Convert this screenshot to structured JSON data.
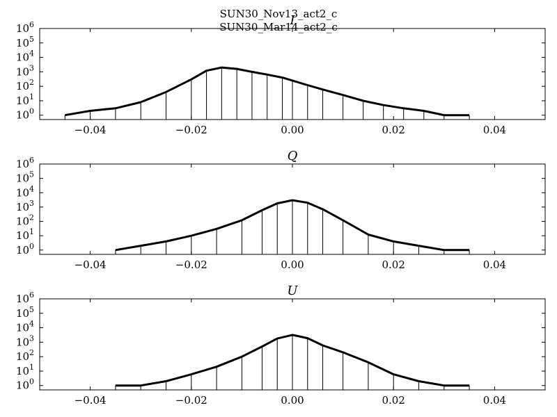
{
  "figure_titles": [
    "SUN30_Nov13_act2_c",
    "SUN30_Mar14_act2_c"
  ],
  "chart_data": [
    {
      "type": "area",
      "title": "I",
      "xlim": [
        -0.05,
        0.05
      ],
      "ylim": [
        0.5,
        1000000
      ],
      "yscale": "log",
      "xticks": [
        "−0.04",
        "−0.02",
        "0.00",
        "0.02",
        "0.04"
      ],
      "yticks": [
        "10^0",
        "10^1",
        "10^2",
        "10^3",
        "10^4",
        "10^5",
        "10^6"
      ],
      "series": [
        {
          "x": [
            -0.045,
            -0.04,
            -0.035,
            -0.03,
            -0.025,
            -0.02,
            -0.017,
            -0.014,
            -0.011,
            -0.008,
            -0.005,
            -0.002,
            0.0,
            0.003,
            0.006,
            0.01,
            0.014,
            0.018,
            0.022,
            0.026,
            0.03,
            0.035
          ],
          "y": [
            1,
            2,
            3,
            8,
            40,
            300,
            1200,
            2000,
            1600,
            1000,
            650,
            400,
            250,
            120,
            60,
            25,
            10,
            5,
            3,
            2,
            1,
            1
          ]
        }
      ]
    },
    {
      "type": "area",
      "title": "Q",
      "xlim": [
        -0.05,
        0.05
      ],
      "ylim": [
        0.5,
        1000000
      ],
      "yscale": "log",
      "xticks": [
        "−0.04",
        "−0.02",
        "0.00",
        "0.02",
        "0.04"
      ],
      "yticks": [
        "10^0",
        "10^1",
        "10^2",
        "10^3",
        "10^4",
        "10^5",
        "10^6"
      ],
      "series": [
        {
          "x": [
            -0.035,
            -0.03,
            -0.025,
            -0.02,
            -0.015,
            -0.01,
            -0.006,
            -0.003,
            0.0,
            0.003,
            0.006,
            0.01,
            0.015,
            0.02,
            0.025,
            0.03,
            0.035
          ],
          "y": [
            1,
            2,
            4,
            10,
            30,
            120,
            600,
            1800,
            3000,
            2000,
            700,
            120,
            12,
            4,
            2,
            1,
            1
          ]
        }
      ]
    },
    {
      "type": "area",
      "title": "U",
      "xlim": [
        -0.05,
        0.05
      ],
      "ylim": [
        0.5,
        1000000
      ],
      "yscale": "log",
      "xticks": [
        "−0.04",
        "−0.02",
        "0.00",
        "0.02",
        "0.04"
      ],
      "yticks": [
        "10^0",
        "10^1",
        "10^2",
        "10^3",
        "10^4",
        "10^5",
        "10^6"
      ],
      "series": [
        {
          "x": [
            -0.035,
            -0.03,
            -0.025,
            -0.02,
            -0.015,
            -0.01,
            -0.006,
            -0.003,
            0.0,
            0.003,
            0.006,
            0.01,
            0.015,
            0.02,
            0.025,
            0.03,
            0.035
          ],
          "y": [
            1,
            1,
            2,
            6,
            20,
            100,
            500,
            1800,
            3200,
            1900,
            600,
            200,
            40,
            6,
            2,
            1,
            1
          ]
        }
      ]
    }
  ]
}
